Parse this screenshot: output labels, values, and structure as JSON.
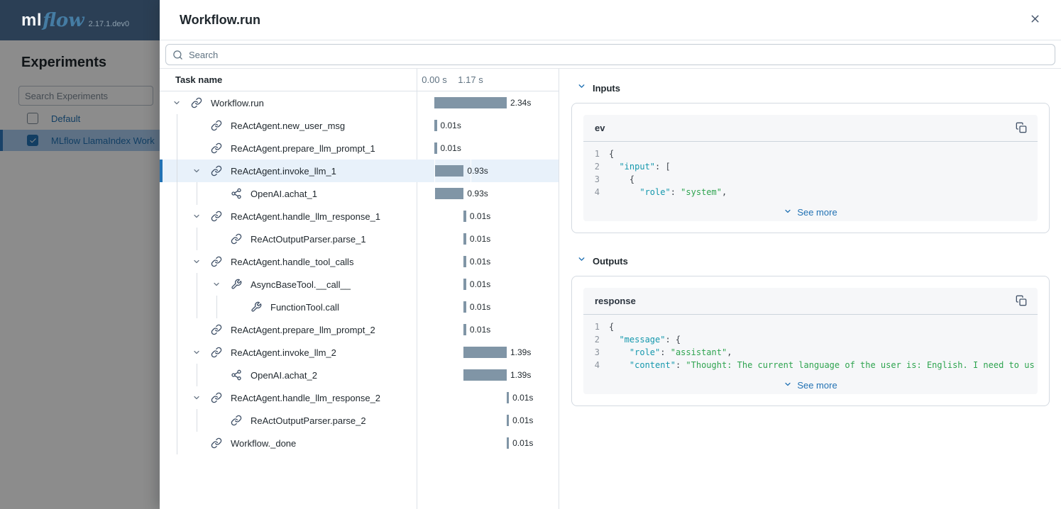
{
  "brand": {
    "logo_ml": "ml",
    "logo_flow": "flow",
    "version": "2.17.1.dev0"
  },
  "sidebar": {
    "title": "Experiments",
    "search_placeholder": "Search Experiments",
    "items": [
      {
        "label": "Default",
        "checked": false,
        "selected": false
      },
      {
        "label": "MLflow LlamaIndex Work",
        "checked": true,
        "selected": true
      }
    ]
  },
  "modal": {
    "title": "Workflow.run",
    "search_placeholder": "Search"
  },
  "tree": {
    "header": "Task name",
    "total_seconds": 2.34,
    "bar_color": "#8095a6",
    "time_ticks": [
      {
        "label": "0.00 s",
        "t": 0.0
      },
      {
        "label": "1.17 s",
        "t": 1.17
      }
    ],
    "rows": [
      {
        "name": "Workflow.run",
        "icon": "chain-icon",
        "level": 0,
        "expandable": true,
        "selected": false,
        "start": 0.0,
        "duration": 2.34,
        "duration_label": "2.34s",
        "guides": []
      },
      {
        "name": "ReActAgent.new_user_msg",
        "icon": "chain-icon",
        "level": 1,
        "expandable": false,
        "selected": false,
        "start": 0.0,
        "duration": 0.01,
        "duration_label": "0.01s",
        "guides": [
          0
        ]
      },
      {
        "name": "ReActAgent.prepare_llm_prompt_1",
        "icon": "chain-icon",
        "level": 1,
        "expandable": false,
        "selected": false,
        "start": 0.0,
        "duration": 0.01,
        "duration_label": "0.01s",
        "guides": [
          0
        ]
      },
      {
        "name": "ReActAgent.invoke_llm_1",
        "icon": "chain-icon",
        "level": 1,
        "expandable": true,
        "selected": true,
        "start": 0.02,
        "duration": 0.93,
        "duration_label": "0.93s",
        "guides": [
          0
        ]
      },
      {
        "name": "OpenAI.achat_1",
        "icon": "graph-icon",
        "level": 2,
        "expandable": false,
        "selected": false,
        "start": 0.02,
        "duration": 0.93,
        "duration_label": "0.93s",
        "guides": [
          0,
          1
        ]
      },
      {
        "name": "ReActAgent.handle_llm_response_1",
        "icon": "chain-icon",
        "level": 1,
        "expandable": true,
        "selected": false,
        "start": 0.95,
        "duration": 0.01,
        "duration_label": "0.01s",
        "guides": [
          0
        ]
      },
      {
        "name": "ReActOutputParser.parse_1",
        "icon": "chain-icon",
        "level": 2,
        "expandable": false,
        "selected": false,
        "start": 0.95,
        "duration": 0.01,
        "duration_label": "0.01s",
        "guides": [
          0,
          1
        ]
      },
      {
        "name": "ReActAgent.handle_tool_calls",
        "icon": "chain-icon",
        "level": 1,
        "expandable": true,
        "selected": false,
        "start": 0.95,
        "duration": 0.01,
        "duration_label": "0.01s",
        "guides": [
          0
        ]
      },
      {
        "name": "AsyncBaseTool.__call__",
        "icon": "wrench-icon",
        "level": 2,
        "expandable": true,
        "selected": false,
        "start": 0.95,
        "duration": 0.01,
        "duration_label": "0.01s",
        "guides": [
          0,
          1
        ]
      },
      {
        "name": "FunctionTool.call",
        "icon": "wrench-icon",
        "level": 3,
        "expandable": false,
        "selected": false,
        "start": 0.95,
        "duration": 0.01,
        "duration_label": "0.01s",
        "guides": [
          0,
          1,
          2
        ]
      },
      {
        "name": "ReActAgent.prepare_llm_prompt_2",
        "icon": "chain-icon",
        "level": 1,
        "expandable": false,
        "selected": false,
        "start": 0.95,
        "duration": 0.01,
        "duration_label": "0.01s",
        "guides": [
          0
        ]
      },
      {
        "name": "ReActAgent.invoke_llm_2",
        "icon": "chain-icon",
        "level": 1,
        "expandable": true,
        "selected": false,
        "start": 0.95,
        "duration": 1.39,
        "duration_label": "1.39s",
        "guides": [
          0
        ]
      },
      {
        "name": "OpenAI.achat_2",
        "icon": "graph-icon",
        "level": 2,
        "expandable": false,
        "selected": false,
        "start": 0.95,
        "duration": 1.39,
        "duration_label": "1.39s",
        "guides": [
          0,
          1
        ]
      },
      {
        "name": "ReActAgent.handle_llm_response_2",
        "icon": "chain-icon",
        "level": 1,
        "expandable": true,
        "selected": false,
        "start": 2.33,
        "duration": 0.01,
        "duration_label": "0.01s",
        "guides": [
          0
        ]
      },
      {
        "name": "ReActOutputParser.parse_2",
        "icon": "chain-icon",
        "level": 2,
        "expandable": false,
        "selected": false,
        "start": 2.33,
        "duration": 0.01,
        "duration_label": "0.01s",
        "guides": [
          0,
          1
        ]
      },
      {
        "name": "Workflow._done",
        "icon": "chain-icon",
        "level": 1,
        "expandable": false,
        "selected": false,
        "start": 2.33,
        "duration": 0.01,
        "duration_label": "0.01s",
        "guides": [
          0
        ]
      }
    ]
  },
  "details": {
    "sections": [
      {
        "heading": "Inputs",
        "card_title": "ev",
        "see_more": "See more",
        "lines": [
          {
            "num": "1",
            "tokens": [
              {
                "c": "p",
                "v": "{"
              }
            ]
          },
          {
            "num": "2",
            "tokens": [
              {
                "c": "p",
                "v": "  "
              },
              {
                "c": "k",
                "v": "\"input\""
              },
              {
                "c": "p",
                "v": ": ["
              }
            ]
          },
          {
            "num": "3",
            "tokens": [
              {
                "c": "p",
                "v": "    {"
              }
            ]
          },
          {
            "num": "4",
            "tokens": [
              {
                "c": "p",
                "v": "      "
              },
              {
                "c": "k",
                "v": "\"role\""
              },
              {
                "c": "p",
                "v": ": "
              },
              {
                "c": "s",
                "v": "\"system\""
              },
              {
                "c": "p",
                "v": ","
              }
            ]
          }
        ]
      },
      {
        "heading": "Outputs",
        "card_title": "response",
        "see_more": "See more",
        "lines": [
          {
            "num": "1",
            "tokens": [
              {
                "c": "p",
                "v": "{"
              }
            ]
          },
          {
            "num": "2",
            "tokens": [
              {
                "c": "p",
                "v": "  "
              },
              {
                "c": "k",
                "v": "\"message\""
              },
              {
                "c": "p",
                "v": ": {"
              }
            ]
          },
          {
            "num": "3",
            "tokens": [
              {
                "c": "p",
                "v": "    "
              },
              {
                "c": "k",
                "v": "\"role\""
              },
              {
                "c": "p",
                "v": ": "
              },
              {
                "c": "s",
                "v": "\"assistant\""
              },
              {
                "c": "p",
                "v": ","
              }
            ]
          },
          {
            "num": "4",
            "tokens": [
              {
                "c": "p",
                "v": "    "
              },
              {
                "c": "k",
                "v": "\"content\""
              },
              {
                "c": "p",
                "v": ": "
              },
              {
                "c": "s",
                "v": "\"Thought: The current language of the user is: English. I need to us"
              }
            ]
          }
        ]
      }
    ]
  },
  "colors": {
    "header_navy": "#2b3f55",
    "primary_blue": "#2272B4",
    "bar_slate": "#8095a6",
    "selected_row_bg": "#e8f1fa",
    "code_key_teal": "#1598ad",
    "code_string_green": "#2ea44f"
  }
}
